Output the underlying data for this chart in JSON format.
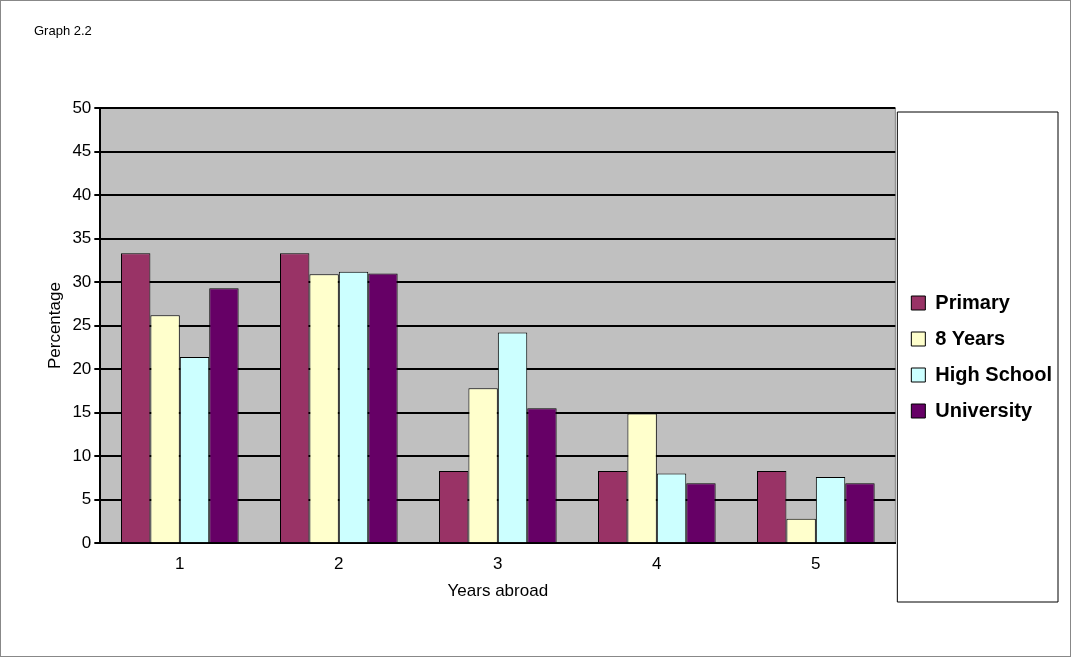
{
  "chart_data": {
    "type": "bar",
    "title": "Graph 2.2",
    "xlabel": "Years abroad",
    "ylabel": "Percentage",
    "categories": [
      "1",
      "2",
      "3",
      "4",
      "5"
    ],
    "series": [
      {
        "name": "Primary",
        "color": "#993366",
        "values": [
          33.3,
          33.3,
          8.3,
          8.3,
          8.3
        ]
      },
      {
        "name": "8 Years",
        "color": "#ffffcc",
        "values": [
          26.2,
          30.9,
          17.8,
          14.9,
          2.8
        ]
      },
      {
        "name": "High School",
        "color": "#ccffff",
        "values": [
          21.4,
          31.2,
          24.2,
          8.0,
          7.6
        ]
      },
      {
        "name": "University",
        "color": "#660066",
        "values": [
          29.3,
          31.0,
          15.5,
          6.9,
          6.9
        ]
      }
    ],
    "ylim": [
      0,
      50
    ],
    "yticks": [
      0,
      5,
      10,
      15,
      20,
      25,
      30,
      35,
      40,
      45,
      50
    ],
    "grid": "y",
    "legend": "right"
  }
}
